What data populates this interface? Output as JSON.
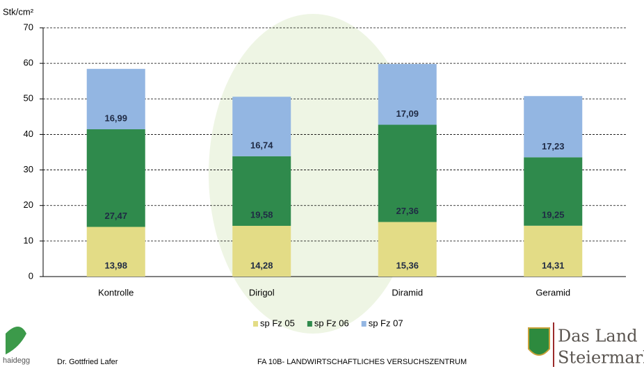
{
  "chart_data": {
    "type": "stacked_bar",
    "y_label": "Stk/cm²",
    "categories": [
      "Kontrolle",
      "Dirigol",
      "Diramid",
      "Geramid"
    ],
    "series": [
      {
        "name": "sp Fz 05",
        "color": "#e3dc86",
        "values": [
          13.98,
          14.28,
          15.36,
          14.31
        ],
        "value_labels": [
          "13,98",
          "14,28",
          "15,36",
          "14,31"
        ]
      },
      {
        "name": "sp Fz 06",
        "color": "#2f8a4c",
        "values": [
          27.47,
          19.58,
          27.36,
          19.25
        ],
        "value_labels": [
          "27,47",
          "19,58",
          "27,36",
          "19,25"
        ]
      },
      {
        "name": "sp Fz 07",
        "color": "#93b6e2",
        "values": [
          16.99,
          16.74,
          17.09,
          17.23
        ],
        "value_labels": [
          "16,99",
          "16,74",
          "17,09",
          "17,23"
        ]
      }
    ],
    "ylim": [
      0,
      70
    ],
    "yticks": [
      0,
      10,
      20,
      30,
      40,
      50,
      60,
      70
    ],
    "grid": true,
    "legend": "bottom"
  },
  "footer": {
    "logo": "haidegg",
    "author": "Dr. Gottfried Lafer",
    "institute": "FA 10B- LANDWIRTSCHAFTLICHES VERSUCHSZENTRUM",
    "brand_line1": "Das Land",
    "brand_line2": "Steiermark"
  }
}
